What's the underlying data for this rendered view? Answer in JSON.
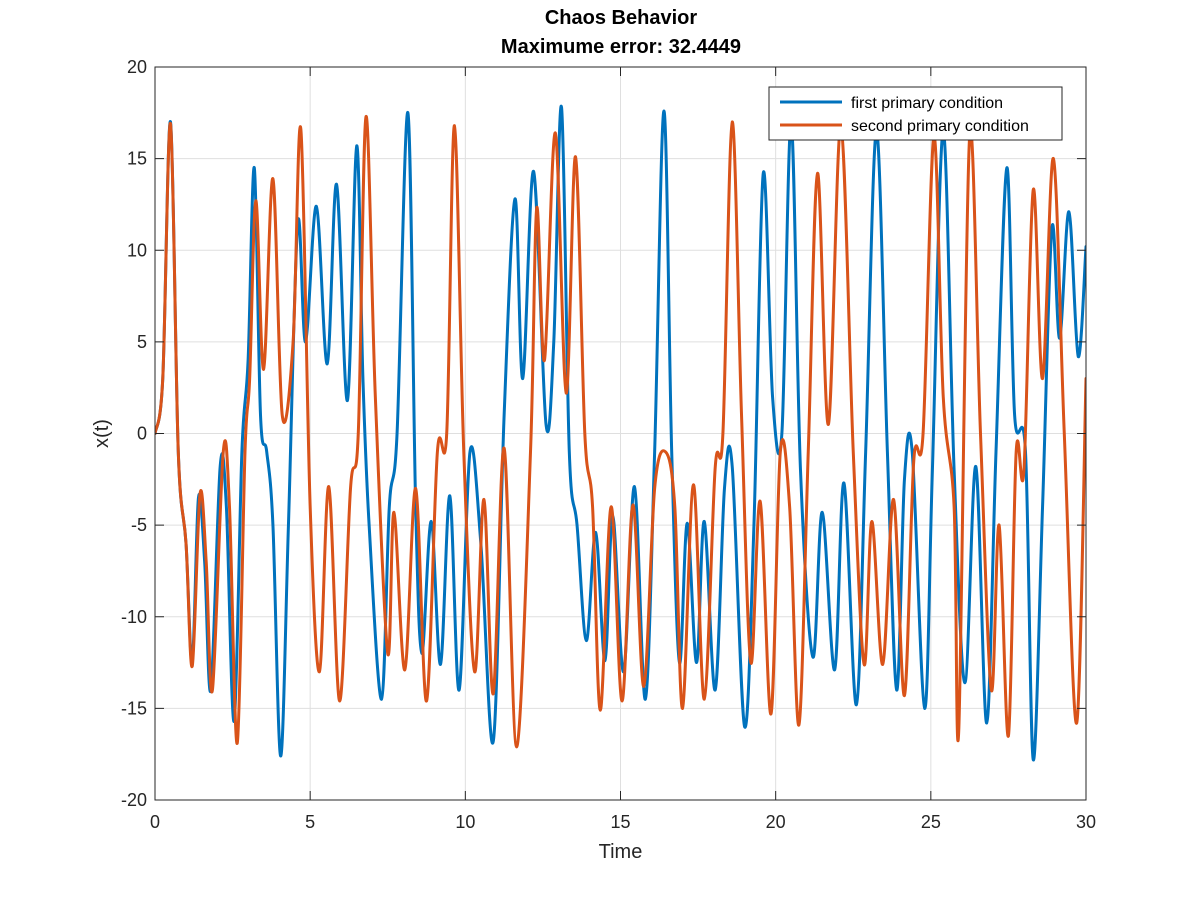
{
  "chart_data": {
    "type": "line",
    "title": "Chaos Behavior",
    "subtitle": "Maximume error: 32.4449",
    "xlabel": "Time",
    "ylabel": "x(t)",
    "xlim": [
      0,
      30
    ],
    "ylim": [
      -20,
      20
    ],
    "xticks": [
      0,
      5,
      10,
      15,
      20,
      25,
      30
    ],
    "yticks": [
      -20,
      -15,
      -10,
      -5,
      0,
      5,
      10,
      15,
      20
    ],
    "grid": true,
    "legend_position": "top-right",
    "series": [
      {
        "name": "first primary condition",
        "color": "#0072BD",
        "points": [
          [
            0,
            0
          ],
          [
            0.25,
            3
          ],
          [
            0.5,
            17
          ],
          [
            0.75,
            -1
          ],
          [
            1,
            -6
          ],
          [
            1.2,
            -12.5
          ],
          [
            1.4,
            -3.5
          ],
          [
            1.6,
            -7
          ],
          [
            1.8,
            -14
          ],
          [
            2.1,
            -1.8
          ],
          [
            2.3,
            -4
          ],
          [
            2.55,
            -15.7
          ],
          [
            2.8,
            -1
          ],
          [
            3.0,
            4
          ],
          [
            3.2,
            14.5
          ],
          [
            3.4,
            1
          ],
          [
            3.6,
            -1
          ],
          [
            3.8,
            -5
          ],
          [
            4.05,
            -17.6
          ],
          [
            4.3,
            -5
          ],
          [
            4.6,
            11.5
          ],
          [
            4.85,
            5
          ],
          [
            5.2,
            12.4
          ],
          [
            5.55,
            3.8
          ],
          [
            5.85,
            13.6
          ],
          [
            6.2,
            1.8
          ],
          [
            6.5,
            15.7
          ],
          [
            6.7,
            3
          ],
          [
            6.9,
            -5
          ],
          [
            7.3,
            -14.5
          ],
          [
            7.55,
            -4
          ],
          [
            7.8,
            0
          ],
          [
            8.15,
            17.5
          ],
          [
            8.4,
            -4
          ],
          [
            8.6,
            -12
          ],
          [
            8.9,
            -4.8
          ],
          [
            9.2,
            -12.6
          ],
          [
            9.5,
            -3.4
          ],
          [
            9.8,
            -14
          ],
          [
            10.15,
            -1
          ],
          [
            10.5,
            -6
          ],
          [
            10.9,
            -16.8
          ],
          [
            11.25,
            1
          ],
          [
            11.6,
            12.8
          ],
          [
            11.85,
            3
          ],
          [
            12.2,
            14.3
          ],
          [
            12.6,
            0.5
          ],
          [
            12.85,
            5
          ],
          [
            13.1,
            17.8
          ],
          [
            13.35,
            -1
          ],
          [
            13.6,
            -5
          ],
          [
            13.9,
            -11.3
          ],
          [
            14.2,
            -5.4
          ],
          [
            14.5,
            -12.4
          ],
          [
            14.75,
            -4.5
          ],
          [
            15.1,
            -13
          ],
          [
            15.45,
            -2.9
          ],
          [
            15.8,
            -14.5
          ],
          [
            16.1,
            -1
          ],
          [
            16.4,
            17.6
          ],
          [
            16.65,
            -1
          ],
          [
            16.9,
            -12.5
          ],
          [
            17.15,
            -4.9
          ],
          [
            17.45,
            -12.5
          ],
          [
            17.7,
            -4.8
          ],
          [
            18.05,
            -14
          ],
          [
            18.35,
            -3
          ],
          [
            18.6,
            -1.8
          ],
          [
            19,
            -16
          ],
          [
            19.3,
            -5
          ],
          [
            19.6,
            14.2
          ],
          [
            19.9,
            2
          ],
          [
            20.2,
            0
          ],
          [
            20.5,
            17
          ],
          [
            20.8,
            -2
          ],
          [
            21.2,
            -12.2
          ],
          [
            21.5,
            -4.3
          ],
          [
            21.9,
            -12.9
          ],
          [
            22.2,
            -2.7
          ],
          [
            22.6,
            -14.8
          ],
          [
            22.9,
            -1
          ],
          [
            23.25,
            16.5
          ],
          [
            23.6,
            -1
          ],
          [
            23.9,
            -14
          ],
          [
            24.15,
            -2.5
          ],
          [
            24.4,
            -1
          ],
          [
            24.8,
            -15
          ],
          [
            25.05,
            -2
          ],
          [
            25.4,
            16.5
          ],
          [
            25.75,
            -2
          ],
          [
            26.1,
            -13.6
          ],
          [
            26.45,
            -1.8
          ],
          [
            26.8,
            -15.8
          ],
          [
            27.1,
            -1
          ],
          [
            27.45,
            14.5
          ],
          [
            27.7,
            1
          ],
          [
            28.05,
            -1
          ],
          [
            28.3,
            -17.8
          ],
          [
            28.6,
            -4
          ],
          [
            28.9,
            11.2
          ],
          [
            29.15,
            5.2
          ],
          [
            29.45,
            12.1
          ],
          [
            29.75,
            4.2
          ],
          [
            30,
            10.2
          ]
        ]
      },
      {
        "name": "second primary condition",
        "color": "#D95319",
        "points": [
          [
            0,
            0
          ],
          [
            0.25,
            3
          ],
          [
            0.5,
            16.9
          ],
          [
            0.75,
            -1
          ],
          [
            1,
            -6
          ],
          [
            1.2,
            -12.7
          ],
          [
            1.45,
            -3.3
          ],
          [
            1.65,
            -7
          ],
          [
            1.85,
            -14
          ],
          [
            2.2,
            -1
          ],
          [
            2.4,
            -4
          ],
          [
            2.65,
            -16.9
          ],
          [
            2.9,
            -1
          ],
          [
            3.05,
            3
          ],
          [
            3.25,
            12.7
          ],
          [
            3.5,
            3.5
          ],
          [
            3.8,
            13.9
          ],
          [
            4.1,
            1
          ],
          [
            4.45,
            5
          ],
          [
            4.7,
            16.6
          ],
          [
            5.0,
            -4
          ],
          [
            5.3,
            -13
          ],
          [
            5.6,
            -2.9
          ],
          [
            5.95,
            -14.6
          ],
          [
            6.3,
            -3
          ],
          [
            6.55,
            0
          ],
          [
            6.8,
            17.3
          ],
          [
            7.1,
            2
          ],
          [
            7.5,
            -12
          ],
          [
            7.7,
            -4.3
          ],
          [
            8.05,
            -12.9
          ],
          [
            8.4,
            -3
          ],
          [
            8.75,
            -14.6
          ],
          [
            9.1,
            -1
          ],
          [
            9.4,
            0
          ],
          [
            9.65,
            16.8
          ],
          [
            9.95,
            -1
          ],
          [
            10.3,
            -13
          ],
          [
            10.6,
            -3.6
          ],
          [
            10.9,
            -14.2
          ],
          [
            11.25,
            -0.8
          ],
          [
            11.65,
            -17.1
          ],
          [
            12.1,
            -1
          ],
          [
            12.3,
            12.3
          ],
          [
            12.55,
            4
          ],
          [
            12.9,
            16.4
          ],
          [
            13.25,
            2.2
          ],
          [
            13.55,
            15.1
          ],
          [
            13.85,
            0
          ],
          [
            14.1,
            -4
          ],
          [
            14.35,
            -15.1
          ],
          [
            14.7,
            -4
          ],
          [
            15.05,
            -14.6
          ],
          [
            15.4,
            -3.9
          ],
          [
            15.75,
            -13.8
          ],
          [
            16.1,
            -3
          ],
          [
            16.45,
            -1
          ],
          [
            16.75,
            -4
          ],
          [
            17.0,
            -15
          ],
          [
            17.35,
            -2.8
          ],
          [
            17.7,
            -14.5
          ],
          [
            18.05,
            -1.9
          ],
          [
            18.3,
            0
          ],
          [
            18.6,
            17
          ],
          [
            18.9,
            1
          ],
          [
            19.2,
            -12.5
          ],
          [
            19.5,
            -3.7
          ],
          [
            19.85,
            -15.3
          ],
          [
            20.15,
            -1
          ],
          [
            20.45,
            -4
          ],
          [
            20.75,
            -15.9
          ],
          [
            21.05,
            -1
          ],
          [
            21.35,
            14.2
          ],
          [
            21.7,
            0.5
          ],
          [
            22.1,
            16.8
          ],
          [
            22.5,
            -1
          ],
          [
            22.85,
            -12.6
          ],
          [
            23.1,
            -4.8
          ],
          [
            23.45,
            -12.6
          ],
          [
            23.8,
            -3.6
          ],
          [
            24.15,
            -14.3
          ],
          [
            24.45,
            -1.5
          ],
          [
            24.75,
            0
          ],
          [
            25.1,
            16.2
          ],
          [
            25.4,
            2
          ],
          [
            25.75,
            -4
          ],
          [
            25.9,
            -16.2
          ],
          [
            26.25,
            16.2
          ],
          [
            26.6,
            0
          ],
          [
            26.95,
            -14
          ],
          [
            27.2,
            -5
          ],
          [
            27.5,
            -16.5
          ],
          [
            27.75,
            -1
          ],
          [
            28.0,
            -2
          ],
          [
            28.3,
            13.3
          ],
          [
            28.6,
            3
          ],
          [
            28.95,
            15
          ],
          [
            29.3,
            0
          ],
          [
            29.7,
            -15.8
          ],
          [
            30,
            3
          ]
        ]
      }
    ]
  }
}
